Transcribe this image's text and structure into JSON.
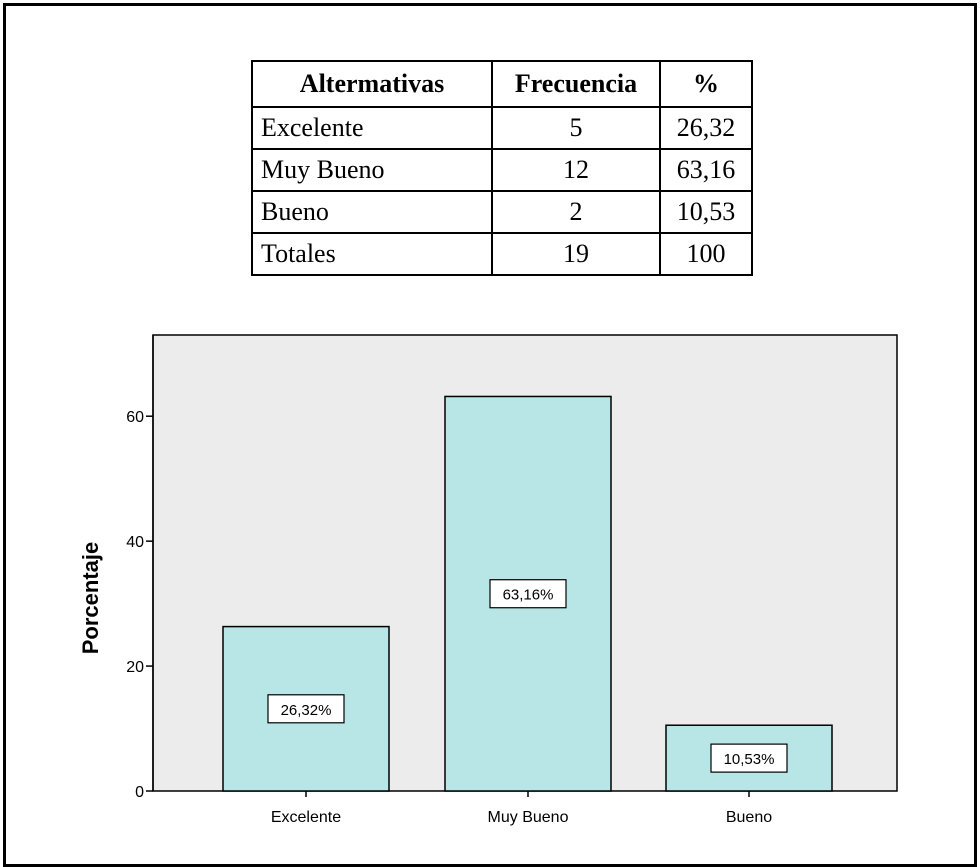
{
  "table": {
    "headers": [
      "Altermativas",
      "Frecuencia",
      "%"
    ],
    "rows": [
      [
        "Excelente",
        "5",
        "26,32"
      ],
      [
        "Muy Bueno",
        "12",
        "63,16"
      ],
      [
        "Bueno",
        "2",
        "10,53"
      ],
      [
        "Totales",
        "19",
        "100"
      ]
    ]
  },
  "chart_data": {
    "type": "bar",
    "categories": [
      "Excelente",
      "Muy Bueno",
      "Bueno"
    ],
    "values": [
      26.32,
      63.16,
      10.53
    ],
    "data_labels": [
      "26,32%",
      "63,16%",
      "10,53%"
    ],
    "xlabel": "",
    "ylabel": "Porcentaje",
    "ylim": [
      0,
      73
    ],
    "yticks": [
      0,
      20,
      40,
      60
    ],
    "grid": false,
    "colors": {
      "bar_fill": "#b8e6e6",
      "bar_stroke": "#000000",
      "plot_background": "#ececec"
    }
  }
}
